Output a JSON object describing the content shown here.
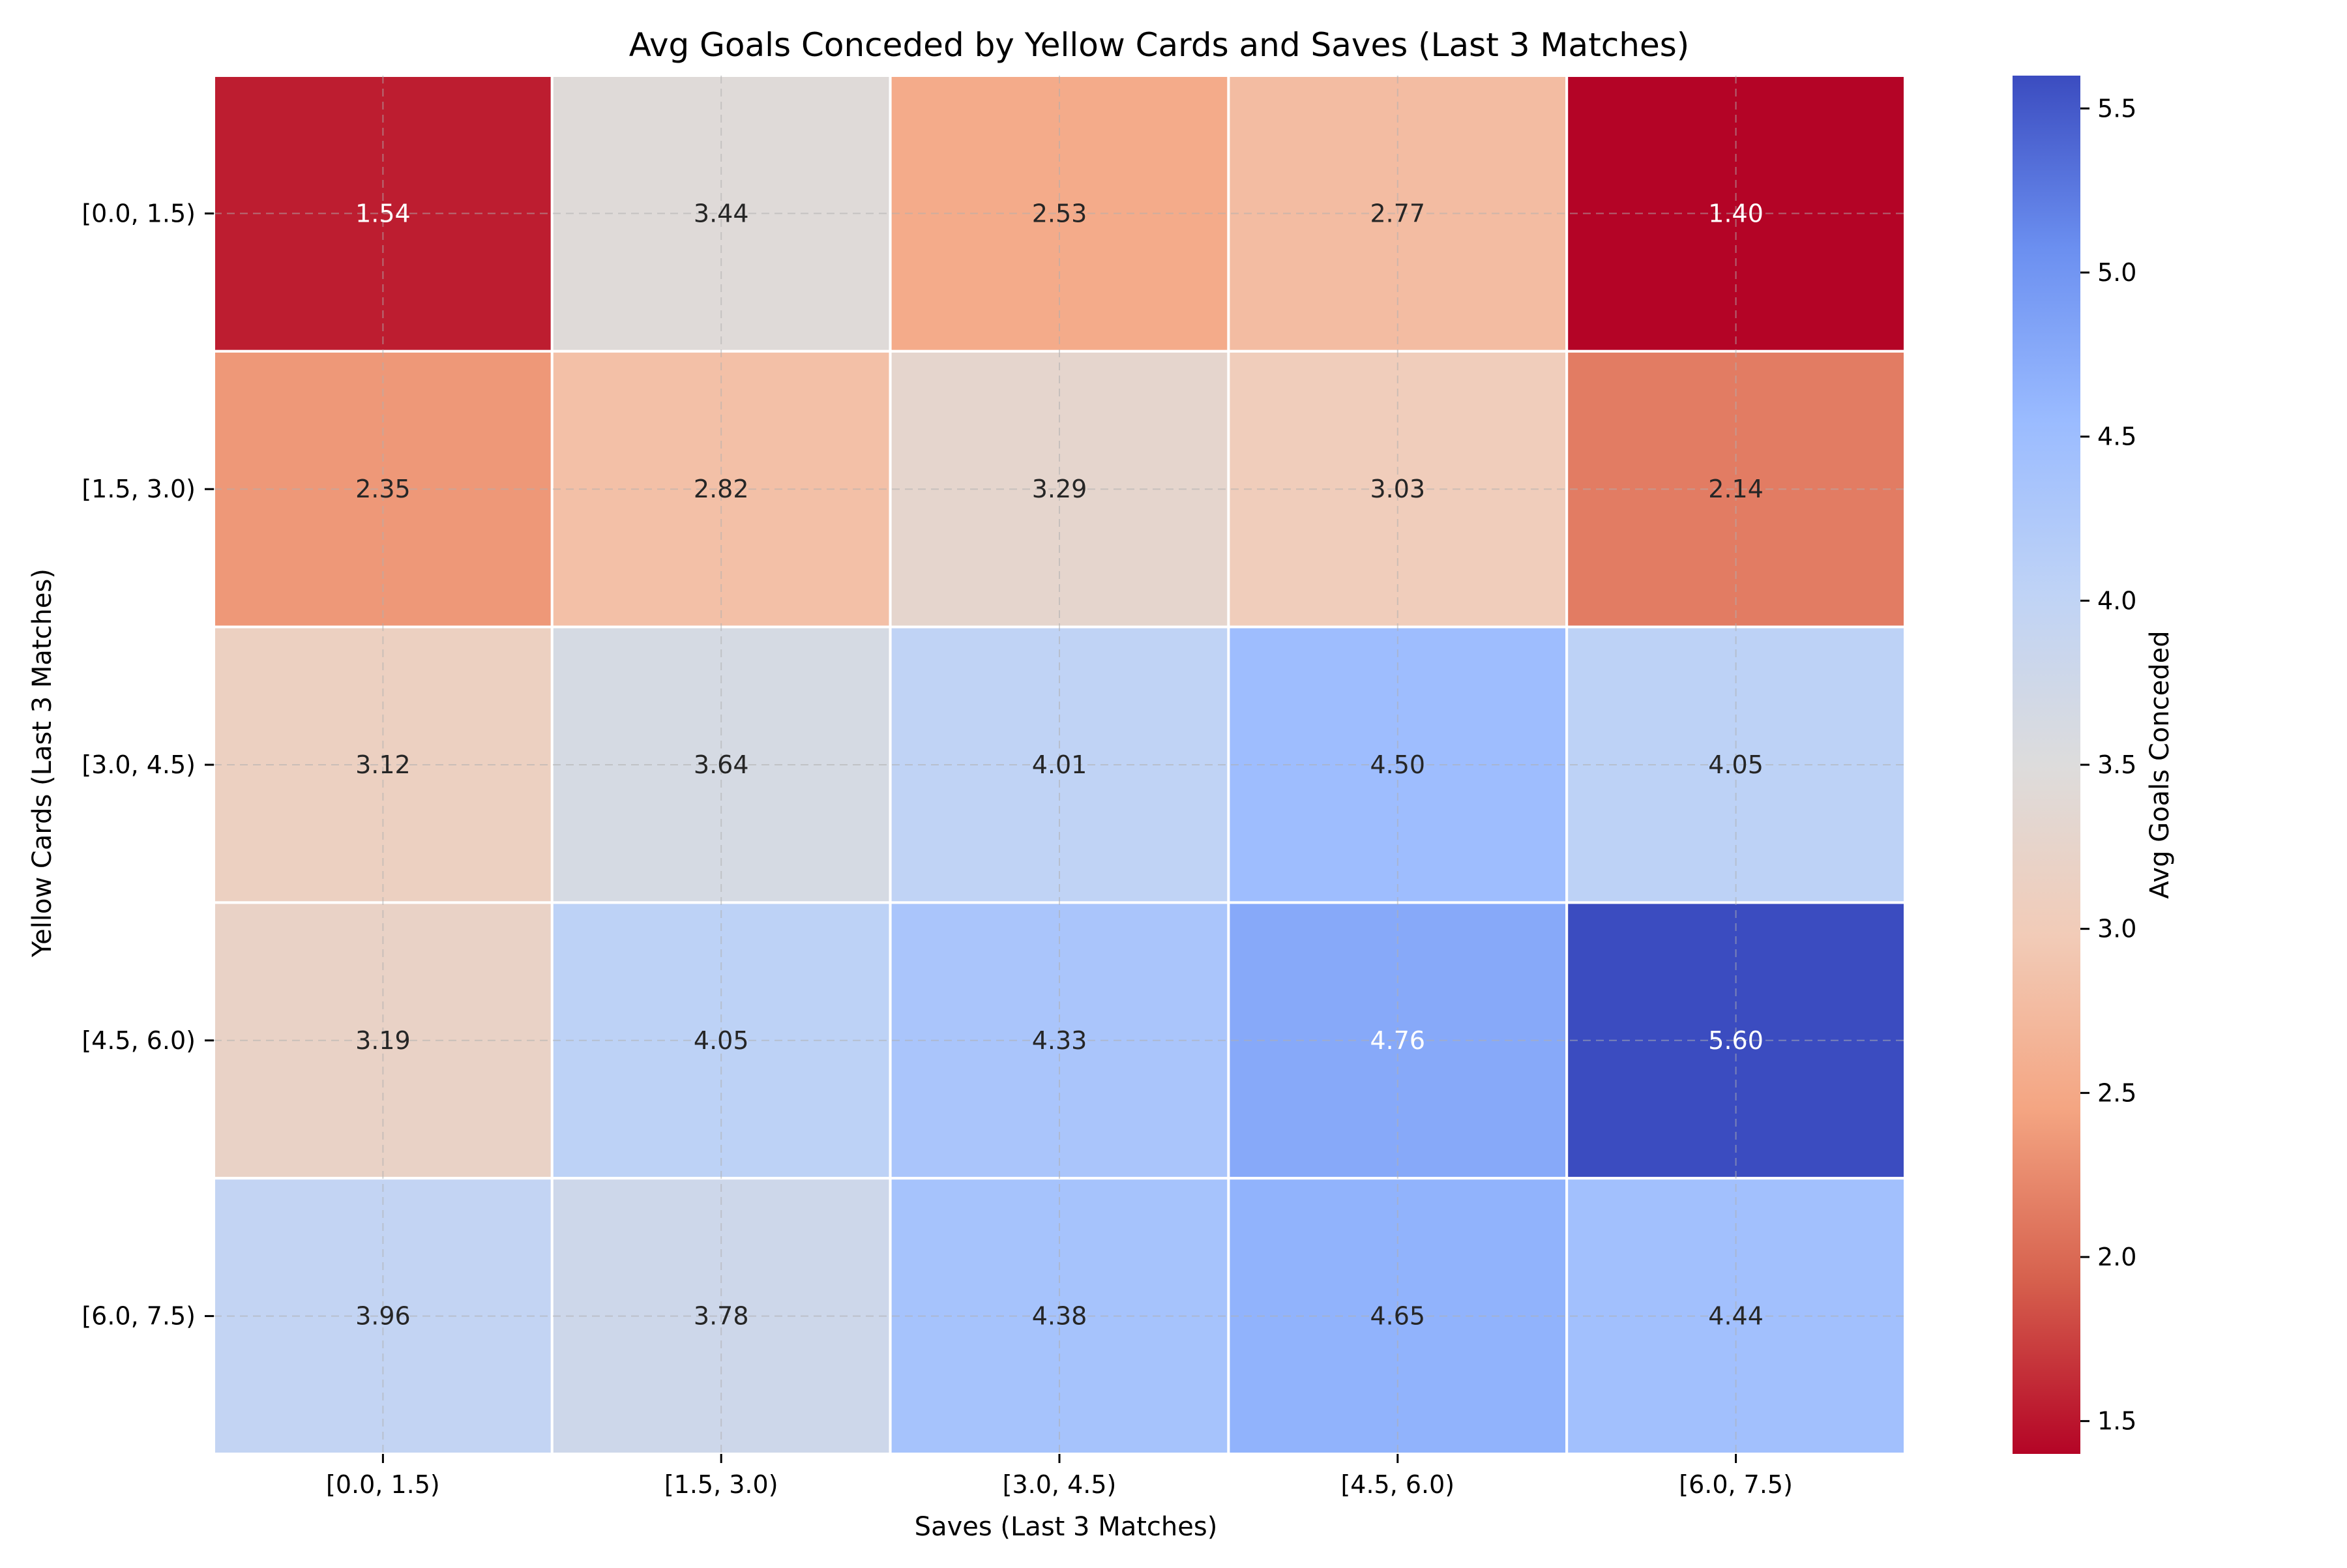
{
  "chart_data": {
    "type": "heatmap",
    "title": "Avg Goals Conceded by Yellow Cards and Saves (Last 3 Matches)",
    "xlabel": "Saves (Last 3 Matches)",
    "ylabel": "Yellow Cards (Last 3 Matches)",
    "x_categories": [
      "[0.0, 1.5)",
      "[1.5, 3.0)",
      "[3.0, 4.5)",
      "[4.5, 6.0)",
      "[6.0, 7.5)"
    ],
    "y_categories": [
      "[0.0, 1.5)",
      "[1.5, 3.0)",
      "[3.0, 4.5)",
      "[4.5, 6.0)",
      "[6.0, 7.5)"
    ],
    "values": [
      [
        1.54,
        3.44,
        2.53,
        2.77,
        1.4
      ],
      [
        2.35,
        2.82,
        3.29,
        3.03,
        2.14
      ],
      [
        3.12,
        3.64,
        4.01,
        4.5,
        4.05
      ],
      [
        3.19,
        4.05,
        4.33,
        4.76,
        5.6
      ],
      [
        3.96,
        3.78,
        4.38,
        4.65,
        4.44
      ]
    ],
    "value_format": "0.00",
    "colormap": "coolwarm_r",
    "vmin": 1.4,
    "vmax": 5.6,
    "grid": true,
    "colorbar": {
      "label": "Avg Goals Conceded",
      "ticks": [
        1.5,
        2.0,
        2.5,
        3.0,
        3.5,
        4.0,
        4.5,
        5.0,
        5.5
      ],
      "tick_labels": [
        "1.5",
        "2.0",
        "2.5",
        "3.0",
        "3.5",
        "4.0",
        "4.5",
        "5.0",
        "5.5"
      ]
    }
  }
}
